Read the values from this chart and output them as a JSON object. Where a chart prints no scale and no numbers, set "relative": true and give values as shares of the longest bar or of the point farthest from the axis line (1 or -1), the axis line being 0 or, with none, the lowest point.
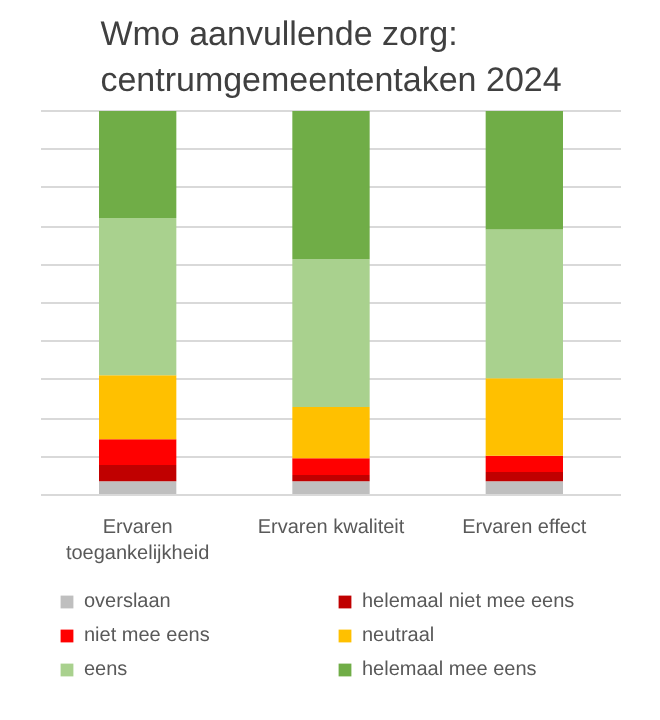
{
  "chart_data": {
    "type": "bar",
    "title": "Wmo aanvullende zorg: centrumgemeententaken 2024",
    "categories": [
      "Ervaren toegankelijkheid",
      "Ervaren kwaliteit",
      "Ervaren effect"
    ],
    "stacked": true,
    "relative": true,
    "grid": "y",
    "legend": "bottom",
    "series": [
      {
        "name": "overslaan",
        "color": "#bfbfbf",
        "values": [
          0.036,
          0.036,
          0.036
        ]
      },
      {
        "name": "helemaal niet mee eens",
        "color": "#c00000",
        "values": [
          0.042,
          0.016,
          0.024
        ]
      },
      {
        "name": "niet mee eens",
        "color": "#ff0000",
        "values": [
          0.067,
          0.044,
          0.042
        ]
      },
      {
        "name": "neutraal",
        "color": "#ffc000",
        "values": [
          0.167,
          0.133,
          0.202
        ]
      },
      {
        "name": "eens",
        "color": "#a9d18e",
        "values": [
          0.409,
          0.385,
          0.387
        ]
      },
      {
        "name": "helemaal mee eens",
        "color": "#70ad47",
        "values": [
          0.279,
          0.386,
          0.309
        ]
      }
    ]
  }
}
